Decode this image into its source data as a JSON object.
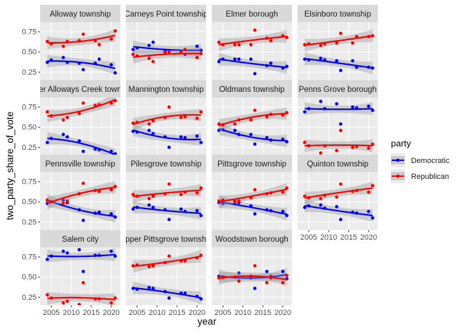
{
  "chart_data": {
    "type": "scatter",
    "xlabel": "year",
    "ylabel": "two_party_share_of_vote",
    "x_ticks": [
      2005,
      2010,
      2015,
      2020
    ],
    "y_ticks": [
      0.25,
      0.5,
      0.75
    ],
    "y_tick_labels": [
      "0.25",
      "0.50",
      "0.75"
    ],
    "xlim": [
      2002.2,
      2022.3
    ],
    "ylim": [
      0.15,
      0.87
    ],
    "grid": true,
    "smooth": "loess with confidence band",
    "legend": {
      "title": "party",
      "placement": "right",
      "entries": [
        {
          "name": "Democratic",
          "color": "#0000ff"
        },
        {
          "name": "Republican",
          "color": "#ff0000"
        }
      ]
    },
    "x": [
      2004,
      2005,
      2008,
      2009,
      2012,
      2013,
      2016,
      2017,
      2020,
      2021
    ],
    "panels": [
      {
        "name": "Alloway township",
        "dem": [
          0.37,
          0.4,
          0.43,
          0.37,
          0.36,
          0.28,
          0.36,
          0.41,
          0.34,
          0.24
        ],
        "rep": [
          0.63,
          0.6,
          0.57,
          0.63,
          0.64,
          0.72,
          0.64,
          0.59,
          0.66,
          0.76
        ]
      },
      {
        "name": "Carneys Point township",
        "dem": [
          0.53,
          0.55,
          0.58,
          0.62,
          0.51,
          0.5,
          0.5,
          0.47,
          0.57,
          0.52
        ],
        "rep": [
          0.47,
          0.45,
          0.42,
          0.38,
          0.49,
          0.5,
          0.5,
          0.53,
          0.43,
          0.48
        ]
      },
      {
        "name": "Elmer borough",
        "dem": [
          0.38,
          0.41,
          0.41,
          0.41,
          0.41,
          0.23,
          0.33,
          0.36,
          0.3,
          0.32
        ],
        "rep": [
          0.62,
          0.59,
          0.59,
          0.59,
          0.59,
          0.77,
          0.67,
          0.64,
          0.7,
          0.68
        ]
      },
      {
        "name": "Elsinboro township",
        "dem": [
          0.41,
          0.4,
          0.42,
          0.4,
          0.39,
          0.27,
          0.39,
          0.31,
          0.31,
          0.3
        ],
        "rep": [
          0.59,
          0.6,
          0.58,
          0.6,
          0.61,
          0.73,
          0.61,
          0.69,
          0.69,
          0.7
        ]
      },
      {
        "name": "Lower Alloways Creek township",
        "dem": [
          0.31,
          0.36,
          0.41,
          0.38,
          0.33,
          0.2,
          0.23,
          0.22,
          0.2,
          0.17
        ],
        "rep": [
          0.69,
          0.64,
          0.59,
          0.62,
          0.67,
          0.8,
          0.77,
          0.78,
          0.8,
          0.83
        ]
      },
      {
        "name": "Mannington township",
        "dem": [
          0.45,
          0.44,
          0.46,
          0.42,
          0.38,
          0.25,
          0.38,
          0.37,
          0.39,
          0.31
        ],
        "rep": [
          0.55,
          0.56,
          0.54,
          0.58,
          0.62,
          0.75,
          0.62,
          0.63,
          0.61,
          0.69
        ]
      },
      {
        "name": "Oldmans township",
        "dem": [
          0.46,
          0.47,
          0.46,
          0.41,
          0.41,
          0.29,
          0.37,
          0.34,
          0.35,
          0.32
        ],
        "rep": [
          0.54,
          0.53,
          0.54,
          0.59,
          0.59,
          0.71,
          0.63,
          0.66,
          0.65,
          0.68
        ]
      },
      {
        "name": "Penns Grove borough",
        "dem": [
          0.69,
          0.73,
          0.82,
          0.73,
          0.79,
          0.54,
          0.75,
          0.74,
          0.76,
          0.71
        ],
        "rep": [
          0.31,
          0.27,
          0.18,
          0.27,
          0.21,
          0.46,
          0.25,
          0.26,
          0.24,
          0.29
        ]
      },
      {
        "name": "Pennsville township",
        "dem": [
          0.48,
          0.5,
          0.52,
          0.49,
          0.4,
          0.27,
          0.36,
          0.37,
          0.35,
          0.31
        ],
        "rep": [
          0.52,
          0.5,
          0.48,
          0.51,
          0.6,
          0.73,
          0.64,
          0.63,
          0.65,
          0.69
        ]
      },
      {
        "name": "Pilesgrove township",
        "dem": [
          0.41,
          0.43,
          0.46,
          0.43,
          0.4,
          0.28,
          0.41,
          0.38,
          0.39,
          0.33
        ],
        "rep": [
          0.59,
          0.57,
          0.54,
          0.57,
          0.6,
          0.72,
          0.59,
          0.62,
          0.61,
          0.67
        ]
      },
      {
        "name": "Pittsgrove township",
        "dem": [
          0.49,
          0.48,
          0.49,
          0.49,
          0.45,
          0.35,
          0.4,
          0.39,
          0.38,
          0.33
        ],
        "rep": [
          0.51,
          0.52,
          0.51,
          0.51,
          0.55,
          0.65,
          0.6,
          0.61,
          0.62,
          0.67
        ]
      },
      {
        "name": "Quinton township",
        "dem": [
          0.43,
          0.45,
          0.46,
          0.42,
          0.44,
          0.28,
          0.37,
          0.36,
          0.38,
          0.3
        ],
        "rep": [
          0.57,
          0.55,
          0.54,
          0.58,
          0.56,
          0.72,
          0.63,
          0.64,
          0.62,
          0.7
        ]
      },
      {
        "name": "Salem city",
        "dem": [
          0.72,
          0.76,
          0.82,
          0.8,
          0.84,
          0.57,
          0.77,
          0.77,
          0.82,
          0.76
        ],
        "rep": [
          0.28,
          0.24,
          0.18,
          0.2,
          0.16,
          0.43,
          0.23,
          0.23,
          0.18,
          0.24
        ]
      },
      {
        "name": "Upper Pittsgrove township",
        "dem": [
          0.36,
          0.35,
          0.37,
          0.36,
          0.32,
          0.24,
          0.3,
          0.3,
          0.26,
          0.23
        ],
        "rep": [
          0.64,
          0.65,
          0.63,
          0.64,
          0.68,
          0.76,
          0.7,
          0.7,
          0.74,
          0.77
        ]
      },
      {
        "name": "Woodstown borough",
        "dem": [
          0.51,
          0.5,
          0.5,
          0.55,
          0.49,
          0.36,
          0.57,
          0.51,
          0.57,
          0.48
        ],
        "rep": [
          0.49,
          0.5,
          0.5,
          0.45,
          0.51,
          0.64,
          0.43,
          0.49,
          0.43,
          0.52
        ]
      }
    ]
  }
}
